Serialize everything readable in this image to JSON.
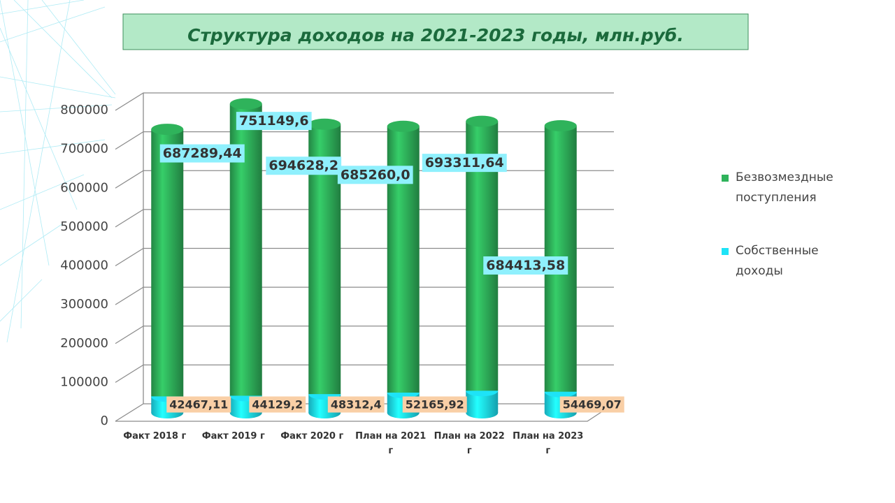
{
  "chart_data": {
    "type": "bar3d_stacked",
    "title": "Структура доходов на 2021-2023 годы, млн.руб.",
    "categories": [
      "Факт 2018 г",
      "Факт 2019 г",
      "Факт 2020 г",
      "План на 2021 г",
      "План на 2022 г",
      "План на 2023 г"
    ],
    "series": [
      {
        "name": "Собственные доходы",
        "color": "#1ee3f7",
        "values": [
          42467.11,
          44129.2,
          48312.4,
          52165.92,
          57000,
          54469.07
        ],
        "value_labels": [
          "42467,11",
          "44129,2",
          "48312,4",
          "52165,92",
          null,
          "54469,07"
        ]
      },
      {
        "name": "Безвозмездные поступления",
        "color": "#2fb35b",
        "values": [
          687289.44,
          751149.6,
          694628.2,
          685260.0,
          693311.64,
          684413.58
        ],
        "value_labels": [
          "687289,44",
          "751149,6",
          "694628,2",
          "685260,0",
          "693311,64",
          "684413,58"
        ]
      }
    ],
    "ylim": [
      0,
      800000
    ],
    "yticks": [
      0,
      100000,
      200000,
      300000,
      400000,
      500000,
      600000,
      700000,
      800000
    ],
    "grid": true
  }
}
